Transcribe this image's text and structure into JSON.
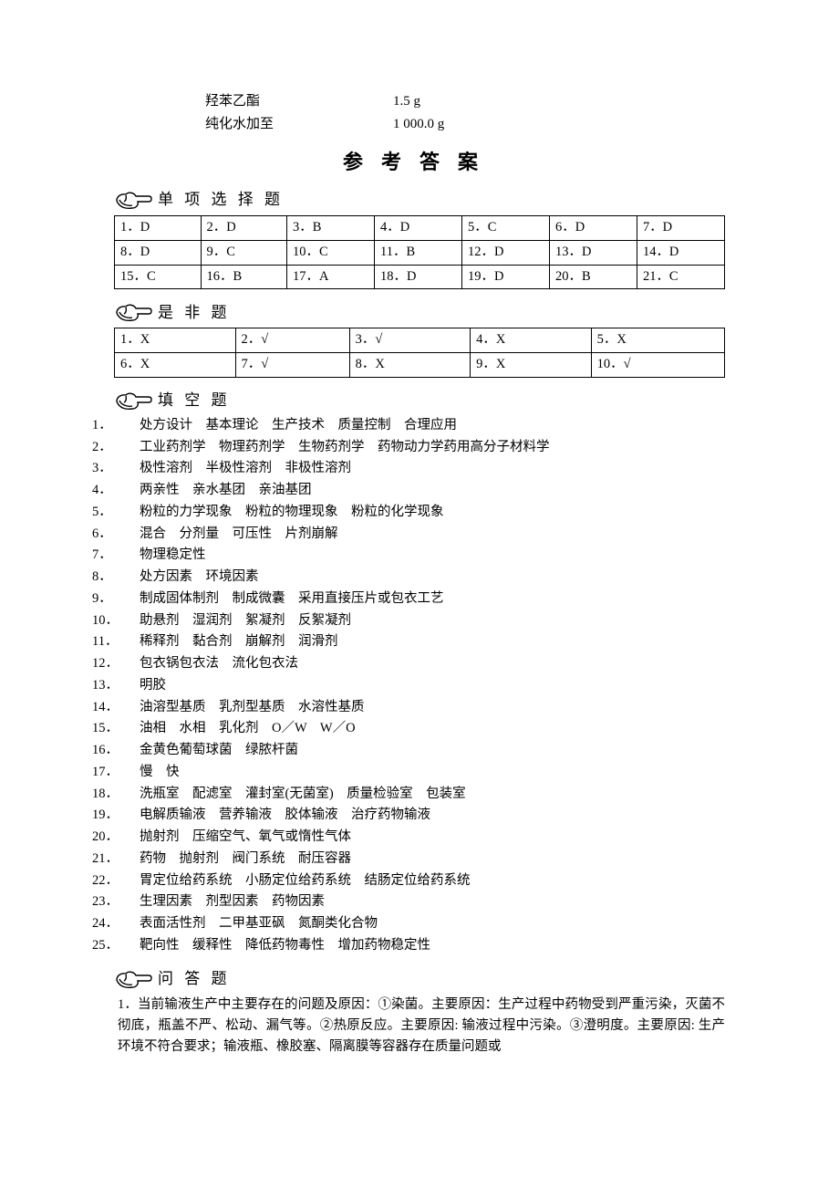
{
  "ingredients": [
    {
      "name": "羟苯乙酯",
      "amount": "1.5 g"
    },
    {
      "name": "纯化水加至",
      "amount": "1 000.0 g"
    }
  ],
  "title": "参考答案",
  "sections": {
    "mc": {
      "title": "单 项 选 择 题",
      "rows": [
        [
          "1．D",
          "2．D",
          "3．B",
          "4．D",
          "5．C",
          "6．D",
          "7．D"
        ],
        [
          "8．D",
          "9．C",
          "10．C",
          "11．B",
          "12．D",
          "13．D",
          "14．D"
        ],
        [
          "15．C",
          "16．B",
          "17．A",
          "18．D",
          "19．D",
          "20．B",
          "21．C"
        ]
      ]
    },
    "tf": {
      "title": "是 非 题",
      "rows": [
        [
          "1．X",
          "2．√",
          "3．√",
          "4．X",
          "5．X"
        ],
        [
          "6．X",
          "7．√",
          "8．X",
          "9．X",
          "10．√"
        ]
      ]
    },
    "fill": {
      "title": "填 空 题",
      "items": [
        {
          "n": "1．",
          "t": "处方设计　基本理论　生产技术　质量控制　合理应用"
        },
        {
          "n": "2．",
          "t": "工业药剂学　物理药剂学　生物药剂学　药物动力学药用高分子材料学"
        },
        {
          "n": "3．",
          "t": "极性溶剂　半极性溶剂　非极性溶剂"
        },
        {
          "n": "4．",
          "t": "两亲性　亲水基团　亲油基团"
        },
        {
          "n": "5．",
          "t": "粉粒的力学现象　粉粒的物理现象　粉粒的化学现象"
        },
        {
          "n": "6．",
          "t": "混合　分剂量　可压性　片剂崩解"
        },
        {
          "n": "7．",
          "t": "物理稳定性"
        },
        {
          "n": "8．",
          "t": "处方因素　环境因素"
        },
        {
          "n": "9．",
          "t": "制成固体制剂　制成微囊　采用直接压片或包衣工艺"
        },
        {
          "n": "10．",
          "t": "助悬剂　湿润剂　絮凝剂　反絮凝剂"
        },
        {
          "n": "11．",
          "t": "稀释剂　黏合剂　崩解剂　润滑剂"
        },
        {
          "n": "12．",
          "t": "包衣锅包衣法　流化包衣法"
        },
        {
          "n": "13．",
          "t": "明胶"
        },
        {
          "n": "14．",
          "t": "油溶型基质　乳剂型基质　水溶性基质"
        },
        {
          "n": "15．",
          "t": "油相　水相　乳化剂　O／W　W／O"
        },
        {
          "n": "16．",
          "t": "金黄色葡萄球菌　绿脓杆菌"
        },
        {
          "n": "17．",
          "t": "慢　快"
        },
        {
          "n": "18．",
          "t": "洗瓶室　配滤室　灌封室(无菌室)　质量检验室　包装室"
        },
        {
          "n": "19．",
          "t": "电解质输液　营养输液　胶体输液　治疗药物输液"
        },
        {
          "n": "20．",
          "t": "抛射剂　压缩空气、氧气或惰性气体"
        },
        {
          "n": "21．",
          "t": "药物　抛射剂　阀门系统　耐压容器"
        },
        {
          "n": "22．",
          "t": "胃定位给药系统　小肠定位给药系统　结肠定位给药系统"
        },
        {
          "n": "23．",
          "t": "生理因素　剂型因素　药物因素"
        },
        {
          "n": "24．",
          "t": "表面活性剂　二甲基亚砜　氮酮类化合物"
        },
        {
          "n": "25．",
          "t": "靶向性　缓释性　降低药物毒性　增加药物稳定性"
        }
      ]
    },
    "qa": {
      "title": "问 答 题",
      "items": [
        {
          "n": "1．",
          "t": "当前输液生产中主要存在的问题及原因：①染菌。主要原因：生产过程中药物受到严重污染，灭菌不彻底，瓶盖不严、松动、漏气等。②热原反应。主要原因: 输液过程中污染。③澄明度。主要原因: 生产环境不符合要求；输液瓶、橡胶塞、隔离膜等容器存在质量问题或"
        }
      ]
    }
  }
}
